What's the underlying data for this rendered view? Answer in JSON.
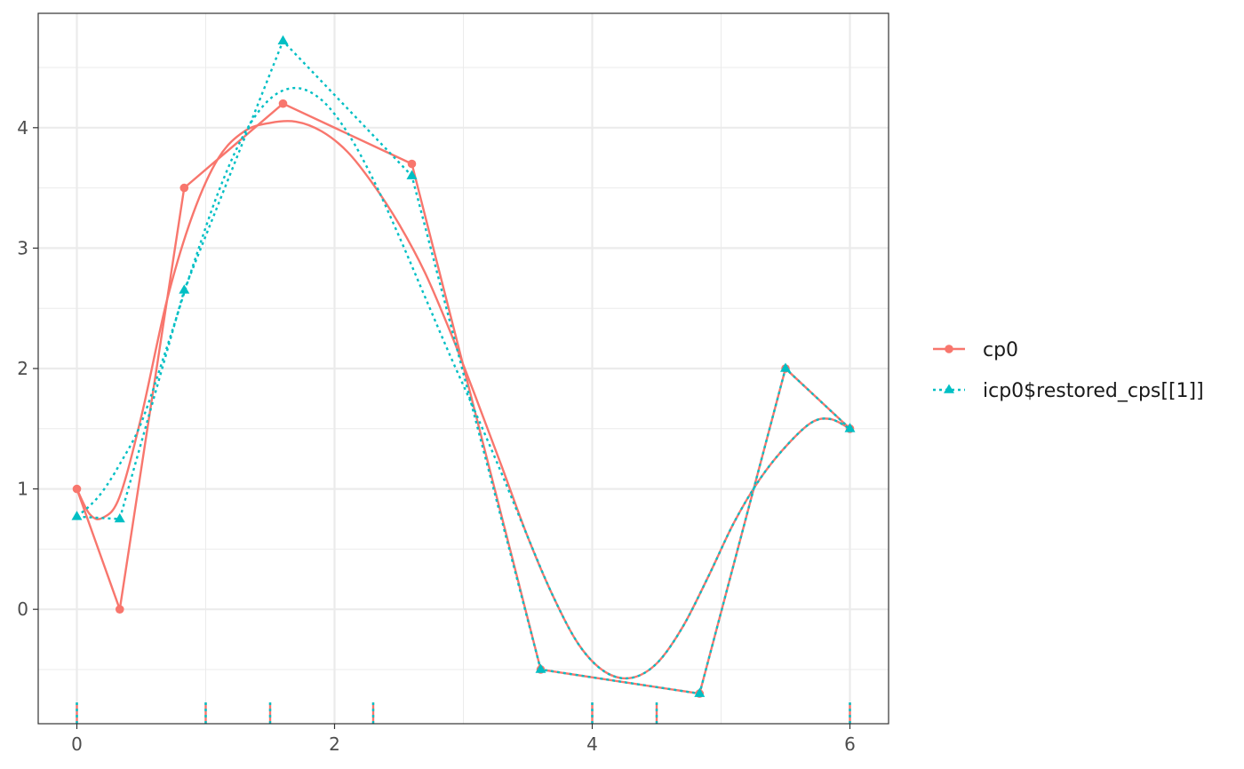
{
  "chart_data": {
    "type": "line",
    "title": "",
    "xlabel": "",
    "ylabel": "",
    "xlim": [
      -0.3,
      6.3
    ],
    "ylim": [
      -0.95,
      4.95
    ],
    "x_ticks": [
      0,
      2,
      4,
      6
    ],
    "x_tick_labels": [
      "0",
      "2",
      "4",
      "6"
    ],
    "y_ticks": [
      0,
      1,
      2,
      3,
      4
    ],
    "y_tick_labels": [
      "0",
      "1",
      "2",
      "3",
      "4"
    ],
    "x_minor_ticks": [
      1,
      3,
      5
    ],
    "y_minor_ticks": [
      -0.5,
      0.5,
      1.5,
      2.5,
      3.5,
      4.5
    ],
    "grid": true,
    "legend_position": "right",
    "colors": {
      "cp0": "#F8766D",
      "icp0": "#00BFC4",
      "grid": "#ebebeb",
      "panel_border": "#333333"
    },
    "series": [
      {
        "name": "cp0",
        "line_style": "solid",
        "marker": "circle",
        "control_points": {
          "x": [
            0,
            0.333,
            0.833,
            1.6,
            2.6,
            3.6,
            4.833,
            5.5,
            6.0
          ],
          "y": [
            1.0,
            0.0,
            3.5,
            4.2,
            3.7,
            -0.5,
            -0.7,
            2.0,
            1.5
          ]
        },
        "curve": {
          "x": [
            0,
            0.1,
            0.2,
            0.33,
            0.5,
            0.7,
            0.9,
            1.1,
            1.3,
            1.5,
            1.7,
            1.9,
            2.1,
            2.3,
            2.5,
            2.7,
            2.9,
            3.1,
            3.3,
            3.5,
            3.7,
            3.9,
            4.1,
            4.3,
            4.5,
            4.7,
            4.9,
            5.1,
            5.3,
            5.5,
            5.7,
            5.85,
            6.0
          ],
          "y": [
            1.0,
            0.79,
            0.76,
            0.93,
            1.6,
            2.57,
            3.28,
            3.75,
            3.97,
            4.04,
            4.05,
            3.97,
            3.8,
            3.53,
            3.2,
            2.8,
            2.3,
            1.75,
            1.18,
            0.6,
            0.1,
            -0.3,
            -0.52,
            -0.57,
            -0.45,
            -0.15,
            0.27,
            0.72,
            1.08,
            1.35,
            1.55,
            1.58,
            1.5
          ]
        }
      },
      {
        "name": "icp0$restored_cps[[1]]",
        "line_style": "dotted",
        "marker": "triangle",
        "control_points": {
          "x": [
            0,
            0.333,
            0.833,
            1.6,
            2.6,
            3.6,
            4.833,
            5.5,
            6.0
          ],
          "y": [
            0.77,
            0.75,
            2.65,
            4.72,
            3.6,
            -0.5,
            -0.7,
            2.0,
            1.5
          ]
        },
        "curve": {
          "x": [
            0,
            0.1,
            0.2,
            0.33,
            0.5,
            0.7,
            0.9,
            1.1,
            1.3,
            1.5,
            1.7,
            1.9,
            2.1,
            2.3,
            2.5,
            2.7,
            2.9,
            3.1,
            3.3,
            3.5,
            3.7,
            3.9,
            4.1,
            4.3,
            4.5,
            4.7,
            4.9,
            5.1,
            5.3,
            5.5,
            5.7,
            5.85,
            6.0
          ],
          "y": [
            0.77,
            0.86,
            0.98,
            1.2,
            1.55,
            2.18,
            2.85,
            3.47,
            3.95,
            4.24,
            4.33,
            4.23,
            3.96,
            3.57,
            3.1,
            2.6,
            2.1,
            1.62,
            1.12,
            0.6,
            0.1,
            -0.3,
            -0.52,
            -0.57,
            -0.45,
            -0.15,
            0.27,
            0.72,
            1.08,
            1.35,
            1.55,
            1.58,
            1.5
          ]
        }
      }
    ],
    "rug_x": [
      0,
      1,
      1.5,
      2.3,
      4,
      4.5,
      6
    ]
  }
}
